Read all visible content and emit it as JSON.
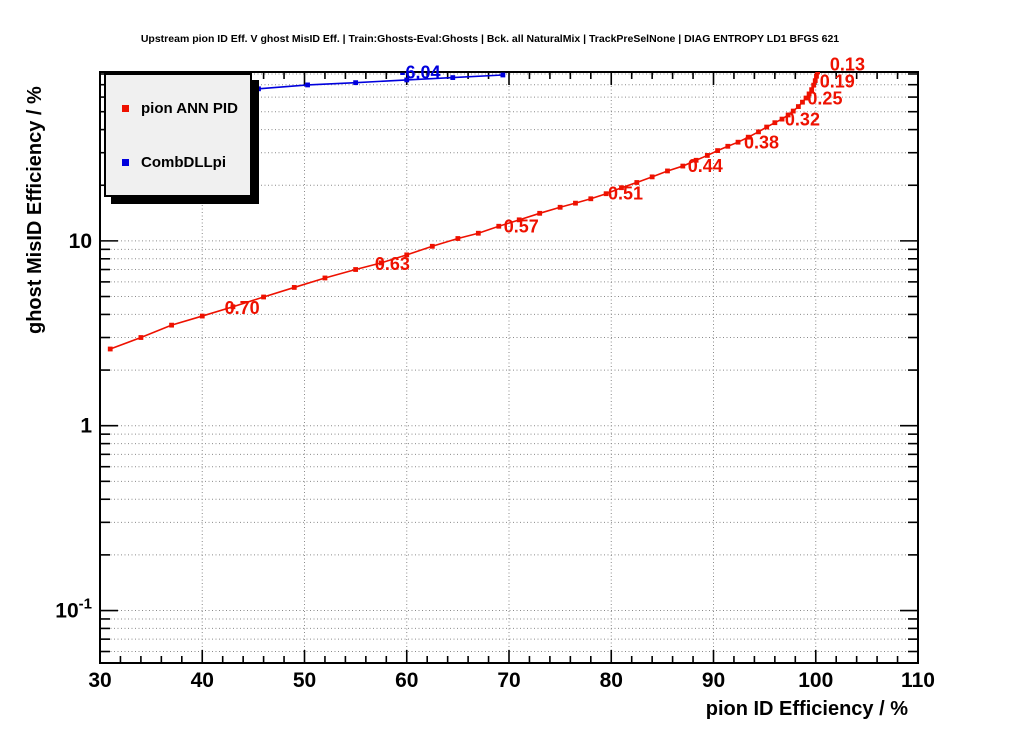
{
  "title": "Upstream pion ID Eff. V ghost MisID Eff. | Train:Ghosts-Eval:Ghosts | Bck. all NaturalMix | TrackPreSelNone | DIAG ENTROPY LD1 BFGS 621",
  "axes": {
    "x_label": "pion ID Efficiency / %",
    "y_label": "ghost MisID Efficiency / %"
  },
  "legend": {
    "entries": [
      {
        "label": "pion ANN PID",
        "color": "#ee1100"
      },
      {
        "label": "CombDLLpi",
        "color": "#0000dd"
      }
    ]
  },
  "chart_data": {
    "type": "line",
    "title": "Upstream pion ID Eff. V ghost MisID Eff. | Train:Ghosts-Eval:Ghosts | Bck. all NaturalMix | TrackPreSelNone | DIAG ENTROPY LD1 BFGS 621",
    "xlabel": "pion ID Efficiency / %",
    "ylabel": "ghost MisID Efficiency / %",
    "x_range": [
      30,
      110
    ],
    "y_range": [
      0.052,
      82
    ],
    "y_scale": "log",
    "grid": "dotted",
    "x_major_ticks": [
      30,
      40,
      50,
      60,
      70,
      80,
      90,
      100,
      110
    ],
    "x_minor_step": 2,
    "y_major_tick_labels": [
      {
        "value": 10,
        "text": "10",
        "exp": null
      },
      {
        "value": 1,
        "text": "1",
        "exp": null
      },
      {
        "value": 0.1,
        "text": "10",
        "exp": "-1"
      }
    ],
    "grid_color": "#8a8a8a",
    "series": [
      {
        "name": "pion ANN PID",
        "color": "#ee1100",
        "marker": "square",
        "points": [
          [
            31,
            2.6
          ],
          [
            34,
            3.0
          ],
          [
            37,
            3.5
          ],
          [
            40,
            3.92
          ],
          [
            43,
            4.4
          ],
          [
            46,
            4.97
          ],
          [
            49,
            5.6
          ],
          [
            52,
            6.3
          ],
          [
            55,
            7.0
          ],
          [
            57.5,
            7.6
          ],
          [
            60,
            8.4
          ],
          [
            62.5,
            9.35
          ],
          [
            65,
            10.3
          ],
          [
            67,
            11.0
          ],
          [
            69,
            12.0
          ],
          [
            71,
            13.0
          ],
          [
            73,
            14.1
          ],
          [
            75,
            15.2
          ],
          [
            76.5,
            16.0
          ],
          [
            78,
            16.9
          ],
          [
            79.5,
            18.0
          ],
          [
            81,
            19.4
          ],
          [
            82.5,
            20.7
          ],
          [
            84,
            22.2
          ],
          [
            85.5,
            23.9
          ],
          [
            87,
            25.4
          ],
          [
            88.3,
            27.3
          ],
          [
            89.4,
            29.0
          ],
          [
            90.4,
            30.8
          ],
          [
            91.4,
            32.5
          ],
          [
            92.4,
            34.2
          ],
          [
            93.4,
            36.4
          ],
          [
            94.4,
            38.9
          ],
          [
            95.2,
            41.3
          ],
          [
            96,
            43.6
          ],
          [
            96.7,
            45.6
          ],
          [
            97.3,
            48
          ],
          [
            97.8,
            50.4
          ],
          [
            98.3,
            53.3
          ],
          [
            98.7,
            56.3
          ],
          [
            99.05,
            59.3
          ],
          [
            99.35,
            62.4
          ],
          [
            99.6,
            65.8
          ],
          [
            99.8,
            69.6
          ],
          [
            99.95,
            73.6
          ],
          [
            100.07,
            77.8
          ],
          [
            100.18,
            82
          ]
        ],
        "point_labels": [
          {
            "text": "0.70",
            "x": 43.9,
            "y": 4.33
          },
          {
            "text": "0.63",
            "x": 58.6,
            "y": 7.5
          },
          {
            "text": "0.57",
            "x": 71.2,
            "y": 12.0
          },
          {
            "text": "0.51",
            "x": 81.4,
            "y": 18.0
          },
          {
            "text": "0.44",
            "x": 89.2,
            "y": 25.5
          },
          {
            "text": "0.38",
            "x": 94.7,
            "y": 34.0
          },
          {
            "text": "0.32",
            "x": 98.7,
            "y": 45.3
          },
          {
            "text": "0.25",
            "x": 100.9,
            "y": 58.8
          },
          {
            "text": "0.19",
            "x": 102.1,
            "y": 72.7
          },
          {
            "text": "0.13",
            "x": 103.1,
            "y": 90.0
          }
        ]
      },
      {
        "name": "CombDLLpi",
        "color": "#0000dd",
        "marker": "square",
        "points": [
          [
            45.5,
            66.5
          ],
          [
            50.3,
            69.8
          ],
          [
            55,
            71.8
          ],
          [
            60,
            74.3
          ],
          [
            64.5,
            76.5
          ],
          [
            69.4,
            79.0
          ]
        ],
        "point_labels": [
          {
            "text": "-6.04",
            "x": 61.3,
            "y": 81.5
          }
        ]
      }
    ]
  }
}
